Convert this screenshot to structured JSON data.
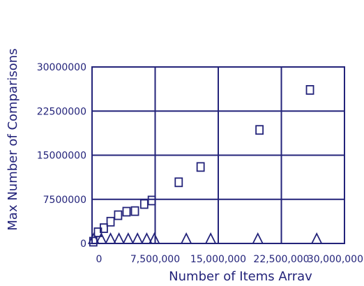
{
  "chart_data": {
    "type": "scatter",
    "title": "",
    "xlabel": "Number of Items Arrav",
    "ylabel": "Max Number of Comparisons",
    "xlim": [
      0,
      30000000
    ],
    "ylim": [
      0,
      30000000
    ],
    "grid": true,
    "x_ticks": [
      "0",
      "7,500,000",
      "15,000,000",
      "22,500,000",
      "30,000,000"
    ],
    "y_ticks": [
      "0",
      "7500000",
      "15000000",
      "22500000",
      "30000000"
    ],
    "series": [
      {
        "marker": "square",
        "points": [
          {
            "x": 150000,
            "y": 300000
          },
          {
            "x": 700000,
            "y": 1900000
          },
          {
            "x": 1400000,
            "y": 2600000
          },
          {
            "x": 2200000,
            "y": 3700000
          },
          {
            "x": 3100000,
            "y": 4800000
          },
          {
            "x": 4100000,
            "y": 5400000
          },
          {
            "x": 5100000,
            "y": 5500000
          },
          {
            "x": 6200000,
            "y": 6700000
          },
          {
            "x": 7100000,
            "y": 7300000
          },
          {
            "x": 10300000,
            "y": 10400000
          },
          {
            "x": 12900000,
            "y": 13000000
          },
          {
            "x": 19900000,
            "y": 19300000
          },
          {
            "x": 25900000,
            "y": 26100000
          }
        ]
      },
      {
        "marker": "triangle",
        "points": [
          {
            "x": 200000,
            "y": 0
          },
          {
            "x": 1100000,
            "y": 0
          },
          {
            "x": 2200000,
            "y": 0
          },
          {
            "x": 3200000,
            "y": 0
          },
          {
            "x": 4300000,
            "y": 0
          },
          {
            "x": 5400000,
            "y": 0
          },
          {
            "x": 6500000,
            "y": 0
          },
          {
            "x": 7400000,
            "y": 0
          },
          {
            "x": 11200000,
            "y": 0
          },
          {
            "x": 14100000,
            "y": 0
          },
          {
            "x": 19700000,
            "y": 0
          },
          {
            "x": 26700000,
            "y": 0
          }
        ]
      }
    ],
    "colors": {
      "ink": "#23237a",
      "background": "#ffffff"
    }
  }
}
